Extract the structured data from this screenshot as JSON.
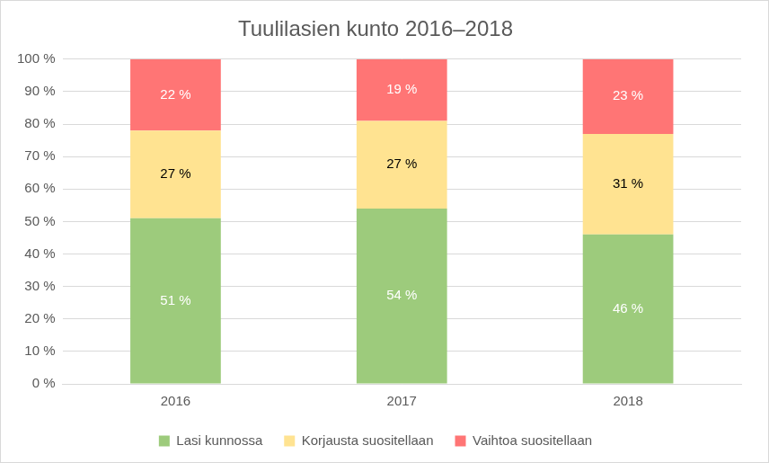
{
  "chart_data": {
    "type": "bar",
    "title": "Tuulilasien kunto 2016–2018",
    "categories": [
      "2016",
      "2017",
      "2018"
    ],
    "series": [
      {
        "name": "Lasi kunnossa",
        "color": "#9dcb7c",
        "values": [
          51,
          54,
          46
        ],
        "value_labels": [
          "51 %",
          "54 %",
          "46 %"
        ]
      },
      {
        "name": "Korjausta suositellaan",
        "color": "#ffe391",
        "values": [
          27,
          27,
          31
        ],
        "value_labels": [
          "27 %",
          "27 %",
          "31 %"
        ]
      },
      {
        "name": "Vaihtoa suositellaan",
        "color": "#ff7575",
        "values": [
          22,
          19,
          23
        ],
        "value_labels": [
          "22 %",
          "19 %",
          "23 %"
        ]
      }
    ],
    "ylim": [
      0,
      100
    ],
    "yticks": [
      {
        "value": 0,
        "label": "0 %"
      },
      {
        "value": 10,
        "label": "10 %"
      },
      {
        "value": 20,
        "label": "20 %"
      },
      {
        "value": 30,
        "label": "30 %"
      },
      {
        "value": 40,
        "label": "40 %"
      },
      {
        "value": 50,
        "label": "50 %"
      },
      {
        "value": 60,
        "label": "60 %"
      },
      {
        "value": 70,
        "label": "70 %"
      },
      {
        "value": 80,
        "label": "80 %"
      },
      {
        "value": 90,
        "label": "90 %"
      },
      {
        "value": 100,
        "label": "100 %"
      }
    ],
    "stacked": true,
    "grid": true,
    "legend": "bottom",
    "data_labels": true
  }
}
